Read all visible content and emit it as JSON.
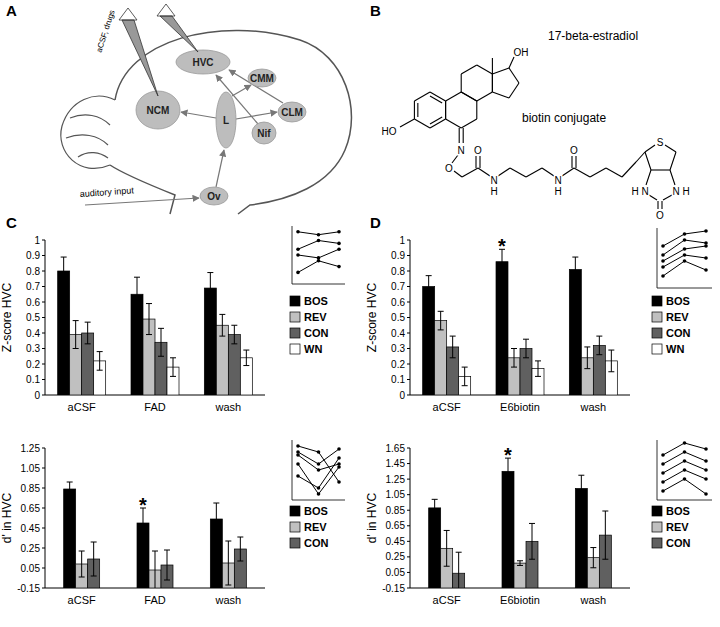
{
  "panel_labels": [
    "A",
    "B",
    "C",
    "D"
  ],
  "diagram": {
    "electrode_label": "aCSF, drugs",
    "regions": [
      "HVC",
      "CMM",
      "CLM",
      "NCM",
      "L",
      "Nif",
      "Ov"
    ],
    "input_label": "auditory input"
  },
  "molecule": {
    "labels": [
      "17-beta-estradiol",
      "biotin conjugate"
    ],
    "atoms": [
      "HO",
      "OH",
      "N",
      "O",
      "O",
      "N",
      "H",
      "N",
      "H",
      "O",
      "S",
      "N",
      "H",
      "N",
      "H",
      "O"
    ]
  },
  "chart_data": [
    {
      "type": "bar",
      "ylabel": "Z-score HVC",
      "categories": [
        "aCSF",
        "FAD",
        "wash"
      ],
      "series": [
        {
          "name": "BOS",
          "color": "#000000",
          "values": [
            0.8,
            0.65,
            0.69
          ],
          "errors": [
            0.09,
            0.11,
            0.1
          ]
        },
        {
          "name": "REV",
          "color": "#c0c0c0",
          "values": [
            0.39,
            0.49,
            0.45
          ],
          "errors": [
            0.09,
            0.1,
            0.07
          ]
        },
        {
          "name": "CON",
          "color": "#606060",
          "values": [
            0.4,
            0.34,
            0.39
          ],
          "errors": [
            0.07,
            0.09,
            0.06
          ]
        },
        {
          "name": "WN",
          "color": "#ffffff",
          "values": [
            0.22,
            0.18,
            0.24
          ],
          "errors": [
            0.06,
            0.06,
            0.05
          ]
        }
      ],
      "ylim": [
        0,
        1
      ],
      "yticks": [
        0,
        0.1,
        0.2,
        0.3,
        0.4,
        0.5,
        0.6,
        0.7,
        0.8,
        0.9,
        1
      ],
      "legend": "right"
    },
    {
      "type": "line",
      "categories": [
        null,
        null,
        null
      ],
      "color": "#000000",
      "marker": "circle",
      "tick_labels": false,
      "ylim": [
        0,
        1
      ],
      "series": [
        {
          "values": [
            0.9,
            0.85,
            0.9
          ]
        },
        {
          "values": [
            0.6,
            0.75,
            0.7
          ]
        },
        {
          "values": [
            0.5,
            0.45,
            0.6
          ]
        },
        {
          "values": [
            0.2,
            0.4,
            0.3
          ]
        }
      ]
    },
    {
      "type": "bar",
      "ylabel": "d' in HVC",
      "categories": [
        "aCSF",
        "FAD",
        "wash"
      ],
      "series": [
        {
          "name": "BOS",
          "color": "#000000",
          "values": [
            0.84,
            0.5,
            0.54
          ],
          "errors": [
            0.07,
            0.15,
            0.16
          ]
        },
        {
          "name": "REV",
          "color": "#c0c0c0",
          "values": [
            0.09,
            0.03,
            0.1
          ],
          "errors": [
            0.13,
            0.19,
            0.22
          ]
        },
        {
          "name": "CON",
          "color": "#606060",
          "values": [
            0.14,
            0.08,
            0.24
          ],
          "errors": [
            0.17,
            0.15,
            0.12
          ]
        }
      ],
      "ylim": [
        -0.15,
        1.25
      ],
      "yticks": [
        -0.15,
        0.05,
        0.25,
        0.45,
        0.65,
        0.85,
        1.05,
        1.25
      ],
      "legend": "right",
      "annotations": [
        {
          "text": "*",
          "category": "FAD",
          "series": "BOS"
        }
      ]
    },
    {
      "type": "line",
      "categories": [
        null,
        null,
        null
      ],
      "color": "#000000",
      "marker": "circle",
      "tick_labels": false,
      "ylim": [
        0,
        1
      ],
      "series": [
        {
          "values": [
            0.9,
            0.8,
            0.3
          ]
        },
        {
          "values": [
            0.8,
            0.6,
            0.85
          ]
        },
        {
          "values": [
            0.75,
            0.5,
            0.6
          ]
        },
        {
          "values": [
            0.6,
            0.1,
            0.55
          ]
        },
        {
          "values": [
            0.4,
            0.2,
            0.7
          ]
        }
      ]
    },
    {
      "type": "bar",
      "ylabel": "Z-score HVC",
      "categories": [
        "aCSF",
        "E6biotin",
        "wash"
      ],
      "series": [
        {
          "name": "BOS",
          "color": "#000000",
          "values": [
            0.7,
            0.86,
            0.81
          ],
          "errors": [
            0.07,
            0.08,
            0.08
          ]
        },
        {
          "name": "REV",
          "color": "#c0c0c0",
          "values": [
            0.48,
            0.24,
            0.24
          ],
          "errors": [
            0.06,
            0.06,
            0.07
          ]
        },
        {
          "name": "CON",
          "color": "#606060",
          "values": [
            0.31,
            0.3,
            0.32
          ],
          "errors": [
            0.07,
            0.06,
            0.06
          ]
        },
        {
          "name": "WN",
          "color": "#ffffff",
          "values": [
            0.12,
            0.17,
            0.22
          ],
          "errors": [
            0.06,
            0.05,
            0.07
          ]
        }
      ],
      "ylim": [
        0,
        1
      ],
      "yticks": [
        0,
        0.1,
        0.2,
        0.3,
        0.4,
        0.5,
        0.6,
        0.7,
        0.8,
        0.9,
        1
      ],
      "legend": "right",
      "annotations": [
        {
          "text": "*",
          "category": "E6biotin",
          "series": "BOS"
        }
      ]
    },
    {
      "type": "line",
      "categories": [
        null,
        null,
        null
      ],
      "color": "#000000",
      "marker": "circle",
      "tick_labels": false,
      "ylim": [
        0,
        1
      ],
      "series": [
        {
          "values": [
            0.7,
            0.9,
            0.95
          ]
        },
        {
          "values": [
            0.55,
            0.8,
            0.75
          ]
        },
        {
          "values": [
            0.45,
            0.65,
            0.7
          ]
        },
        {
          "values": [
            0.35,
            0.55,
            0.5
          ]
        },
        {
          "values": [
            0.2,
            0.45,
            0.3
          ]
        }
      ]
    },
    {
      "type": "bar",
      "ylabel": "d' in HVC",
      "categories": [
        "aCSF",
        "E6biotin",
        "wash"
      ],
      "series": [
        {
          "name": "BOS",
          "color": "#000000",
          "values": [
            0.88,
            1.35,
            1.13
          ],
          "errors": [
            0.11,
            0.17,
            0.17
          ]
        },
        {
          "name": "REV",
          "color": "#c0c0c0",
          "values": [
            0.36,
            0.17,
            0.24
          ],
          "errors": [
            0.23,
            0.03,
            0.13
          ]
        },
        {
          "name": "CON",
          "color": "#606060",
          "values": [
            0.04,
            0.45,
            0.53
          ],
          "errors": [
            0.27,
            0.23,
            0.31
          ]
        }
      ],
      "ylim": [
        -0.15,
        1.65
      ],
      "yticks": [
        -0.15,
        0.05,
        0.25,
        0.45,
        0.65,
        0.85,
        1.05,
        1.25,
        1.45,
        1.65
      ],
      "legend": "right",
      "annotations": [
        {
          "text": "*",
          "category": "E6biotin",
          "series": "BOS"
        }
      ]
    },
    {
      "type": "line",
      "categories": [
        null,
        null,
        null
      ],
      "color": "#000000",
      "marker": "circle",
      "tick_labels": false,
      "ylim": [
        0,
        1
      ],
      "series": [
        {
          "values": [
            0.75,
            0.95,
            0.85
          ]
        },
        {
          "values": [
            0.6,
            0.8,
            0.65
          ]
        },
        {
          "values": [
            0.45,
            0.65,
            0.5
          ]
        },
        {
          "values": [
            0.3,
            0.5,
            0.35
          ]
        },
        {
          "values": [
            0.15,
            0.35,
            0.1
          ]
        }
      ]
    }
  ]
}
